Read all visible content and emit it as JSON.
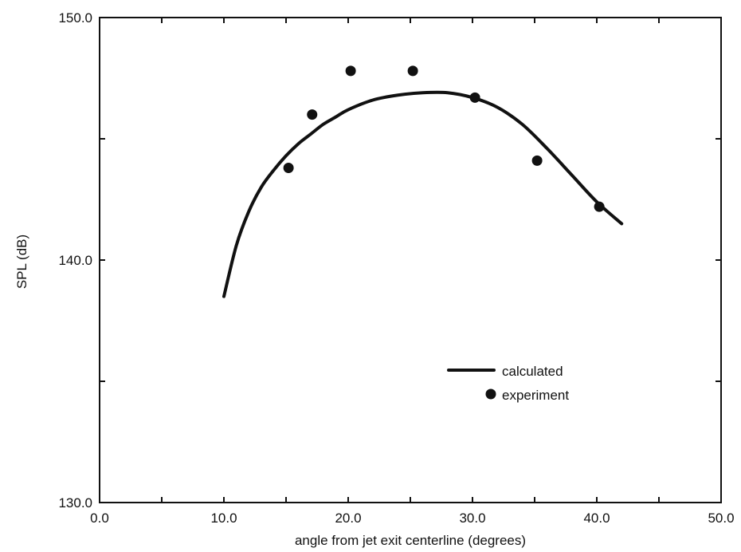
{
  "chart_data": {
    "type": "line",
    "title": "",
    "xlabel": "angle from jet exit centerline (degrees)",
    "ylabel": "SPL (dB)",
    "xlim": [
      0,
      50
    ],
    "ylim": [
      130,
      150
    ],
    "x_ticks": [
      0,
      10,
      20,
      30,
      40,
      50
    ],
    "x_tick_labels": [
      "0.0",
      "10.0",
      "20.0",
      "30.0",
      "40.0",
      "50.0"
    ],
    "y_ticks": [
      130,
      140,
      150
    ],
    "y_tick_labels": [
      "130.0",
      "140.0",
      "150.0"
    ],
    "y_minor_ticks": [
      135,
      145
    ],
    "x_minor_ticks": [
      5,
      15,
      25,
      35,
      45
    ],
    "grid": false,
    "legend_position": "center-right",
    "series": [
      {
        "name": "calculated",
        "style": "line",
        "color": "#111111",
        "x": [
          10.0,
          11.0,
          12.0,
          13.0,
          14.0,
          15.0,
          16.0,
          17.0,
          18.0,
          19.0,
          20.0,
          22.0,
          24.0,
          26.0,
          28.0,
          30.0,
          32.0,
          34.0,
          36.0,
          38.0,
          40.0,
          42.0
        ],
        "y": [
          138.5,
          140.6,
          142.0,
          143.0,
          143.7,
          144.3,
          144.8,
          145.2,
          145.6,
          145.9,
          146.2,
          146.6,
          146.8,
          146.9,
          146.9,
          146.7,
          146.3,
          145.6,
          144.6,
          143.5,
          142.4,
          141.5
        ]
      },
      {
        "name": "experiment",
        "style": "scatter",
        "color": "#111111",
        "x": [
          15.2,
          17.1,
          20.2,
          25.2,
          30.2,
          35.2,
          40.2
        ],
        "y": [
          143.8,
          146.0,
          147.8,
          147.8,
          146.7,
          144.1,
          142.2
        ]
      }
    ]
  }
}
